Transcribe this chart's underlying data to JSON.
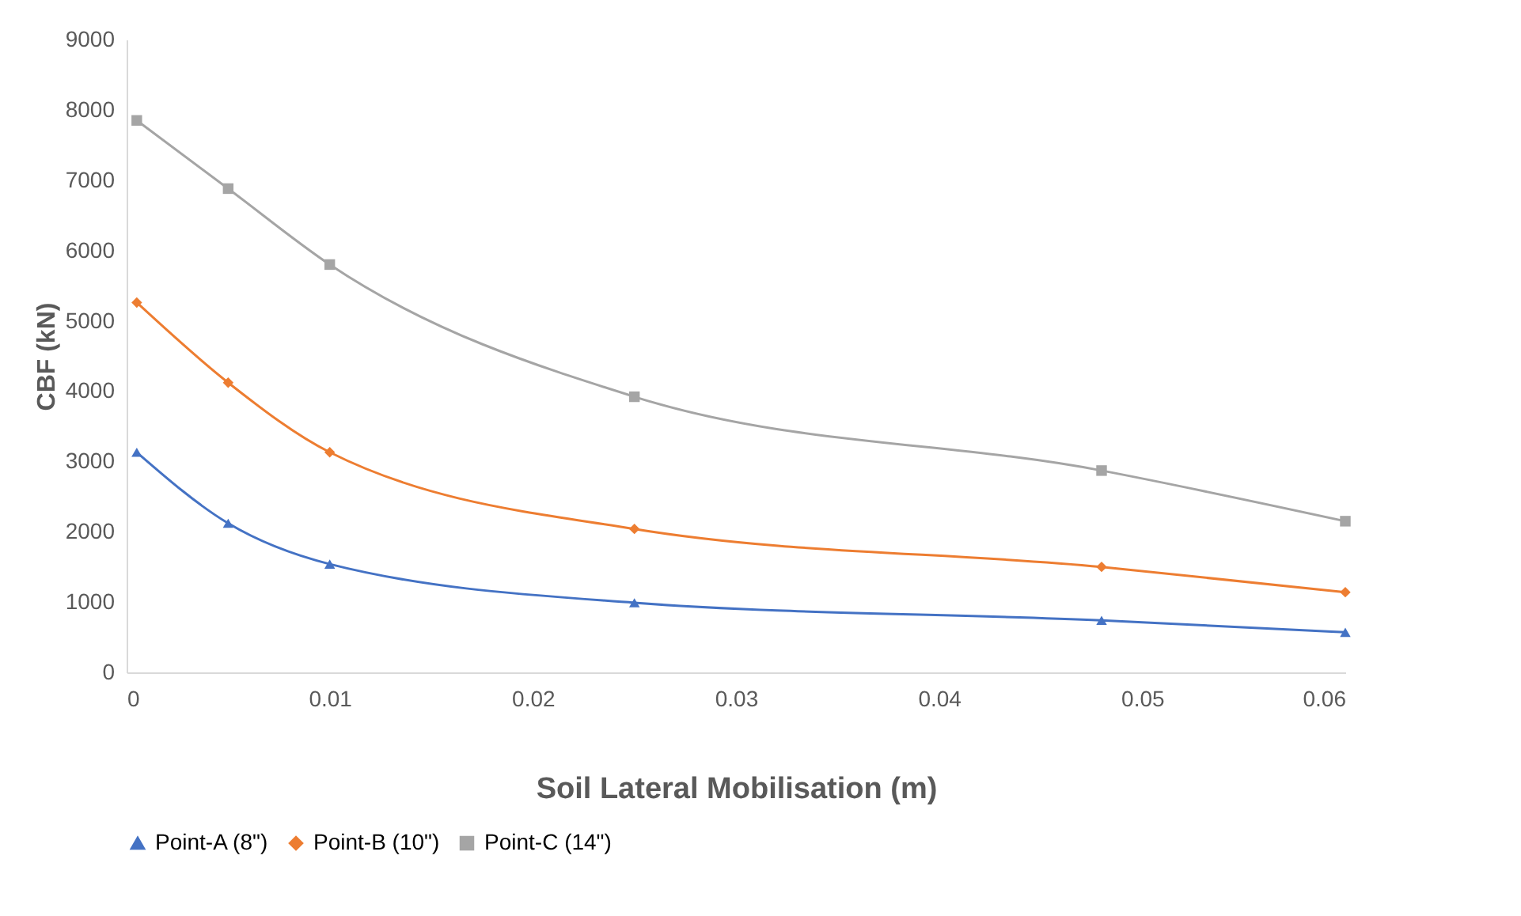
{
  "chart_data": {
    "type": "line",
    "xlabel": "Soil Lateral Mobilisation (m)",
    "ylabel": "CBF (kN)",
    "x": [
      0.0005,
      0.005,
      0.01,
      0.025,
      0.048,
      0.06
    ],
    "series": [
      {
        "name": "Point-A (8\")",
        "color": "#4472c4",
        "marker": "triangle",
        "values": [
          3130,
          2120,
          1540,
          990,
          740,
          570
        ]
      },
      {
        "name": "Point-B (10\")",
        "color": "#ed7d31",
        "marker": "diamond",
        "values": [
          5260,
          4120,
          3130,
          2040,
          1500,
          1140
        ]
      },
      {
        "name": "Point-C (14\")",
        "color": "#a5a5a5",
        "marker": "square",
        "values": [
          7850,
          6880,
          5800,
          3920,
          2870,
          2150
        ]
      }
    ],
    "xlim": [
      0,
      0.06
    ],
    "xticks": [
      0,
      0.01,
      0.02,
      0.03,
      0.04,
      0.05,
      0.06
    ],
    "ylim": [
      0,
      9000
    ],
    "yticks": [
      0,
      1000,
      2000,
      3000,
      4000,
      5000,
      6000,
      7000,
      8000,
      9000
    ],
    "grid": false,
    "legend": "bottom",
    "line_style": "solid"
  }
}
